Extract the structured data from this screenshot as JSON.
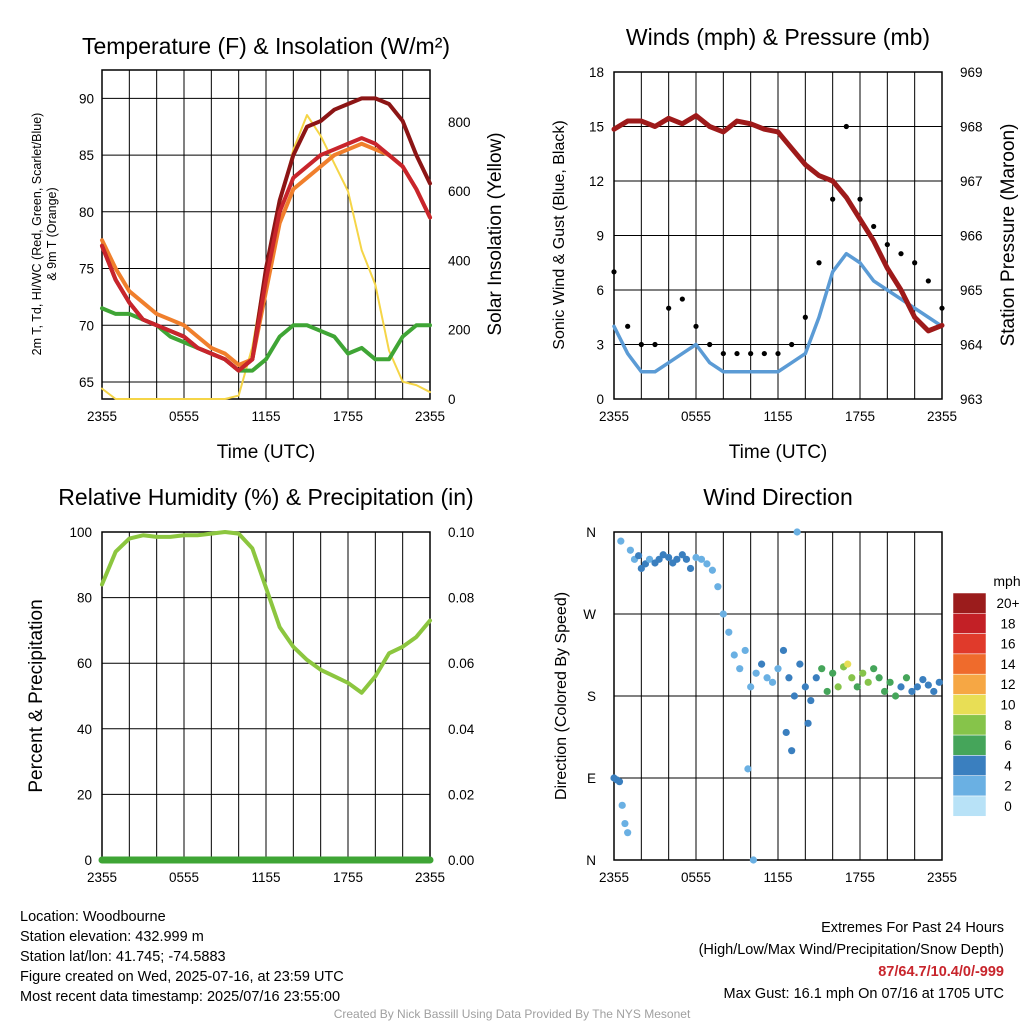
{
  "panels": {
    "temperature": {
      "title": "Temperature (F) & Insolation (W/m²)",
      "ylabel_left": [
        "2m T, Td, HI/WC (Red, Green, Scarlet/Blue)",
        "& 9m T (Orange)"
      ],
      "ylabel_right": "Solar Insolation (Yellow)",
      "xlabel": "Time (UTC)",
      "yticks_left": [
        "65",
        "70",
        "75",
        "80",
        "85",
        "90"
      ],
      "yticks_right": [
        "0",
        "200",
        "400",
        "600",
        "800"
      ]
    },
    "winds": {
      "title": "Winds (mph) & Pressure (mb)",
      "ylabel_left": "Sonic Wind & Gust (Blue, Black)",
      "ylabel_right": "Station Pressure (Maroon)",
      "xlabel": "Time (UTC)",
      "yticks_left": [
        "0",
        "3",
        "6",
        "9",
        "12",
        "15",
        "18"
      ],
      "yticks_right": [
        "963",
        "964",
        "965",
        "966",
        "967",
        "968",
        "969"
      ]
    },
    "humidity": {
      "title": "Relative Humidity (%) & Precipitation (in)",
      "ylabel_left": "Percent & Precipitation",
      "yticks_left": [
        "0",
        "20",
        "40",
        "60",
        "80",
        "100"
      ],
      "yticks_right": [
        "0.00",
        "0.02",
        "0.04",
        "0.06",
        "0.08",
        "0.10"
      ]
    },
    "direction": {
      "title": "Wind Direction",
      "ylabel_left": "Direction (Colored By Speed)",
      "yticks_left": [
        "N",
        "E",
        "S",
        "W",
        "N"
      ],
      "legend_unit": "mph",
      "legend_labels": [
        "20+",
        "18",
        "16",
        "14",
        "12",
        "10",
        "8",
        "6",
        "4",
        "2",
        "0"
      ]
    },
    "xticks": [
      "2355",
      "0555",
      "1155",
      "1755",
      "2355"
    ]
  },
  "colors": {
    "temperature": "#c8252c",
    "dewpoint": "#3fa535",
    "heat_index": "#8c1515",
    "temp_9m": "#f07f2c",
    "insolation": "#f5d547",
    "wind": "#5b9bd5",
    "gust": "#000000",
    "pressure": "#9e1a1a",
    "humidity": "#8cc63f",
    "precip": "#3fa535",
    "speed_scale": [
      "#9b1c1c",
      "#c32026",
      "#e03a2b",
      "#ef6b2c",
      "#f6a744",
      "#e8de55",
      "#86c44a",
      "#45a55a",
      "#3a7fbf",
      "#6ab0e3",
      "#b8e2f7"
    ]
  },
  "chart_data": [
    {
      "type": "line",
      "title": "Temperature (F) & Insolation (W/m²)",
      "xlabel": "Time (UTC)",
      "ylabel": "2m T, Td, HI/WC (Red, Green, Scarlet/Blue) & 9m T (Orange)",
      "ylabel_right": "Solar Insolation (Yellow)",
      "x_hours": [
        0,
        1,
        2,
        3,
        4,
        5,
        6,
        7,
        8,
        9,
        10,
        11,
        12,
        13,
        14,
        15,
        16,
        17,
        18,
        19,
        20,
        21,
        22,
        23,
        24
      ],
      "ylim": [
        63.5,
        92.5
      ],
      "ylim_right": [
        0,
        950
      ],
      "series": [
        {
          "name": "2m T",
          "values": [
            77,
            74,
            72,
            70.5,
            70,
            69.5,
            69,
            68,
            67.5,
            67,
            66,
            67,
            74,
            80,
            83,
            84,
            85,
            85.5,
            86,
            86.5,
            86,
            85,
            84,
            82,
            79.5
          ]
        },
        {
          "name": "Td",
          "values": [
            71.5,
            71,
            71,
            70.5,
            70,
            69,
            68.5,
            68,
            67.5,
            67,
            66,
            66,
            67,
            69,
            70,
            70,
            69.5,
            69,
            67.5,
            68,
            67,
            67,
            69,
            70,
            70
          ]
        },
        {
          "name": "HI/WC",
          "values": [
            77,
            74,
            72,
            70.5,
            70,
            69.5,
            69,
            68,
            67.5,
            67,
            66,
            67,
            75,
            81,
            85,
            87.5,
            88,
            89,
            89.5,
            90,
            90,
            89.5,
            88,
            85,
            82.5
          ]
        },
        {
          "name": "9m T",
          "values": [
            77.5,
            75,
            73,
            72,
            71,
            70.5,
            70,
            69,
            68,
            67.5,
            66.5,
            67,
            73,
            79,
            82,
            83,
            84,
            85,
            85.5,
            86,
            85.5,
            85,
            84,
            82,
            79.5
          ]
        },
        {
          "name": "Solar Insolation",
          "axis": "right",
          "values": [
            30,
            0,
            0,
            0,
            0,
            0,
            0,
            0,
            0,
            0,
            10,
            150,
            380,
            560,
            720,
            820,
            760,
            680,
            600,
            430,
            330,
            140,
            50,
            40,
            20
          ]
        }
      ]
    },
    {
      "type": "line",
      "title": "Winds (mph) & Pressure (mb)",
      "xlabel": "Time (UTC)",
      "ylabel": "Sonic Wind & Gust (Blue, Black)",
      "ylabel_right": "Station Pressure (Maroon)",
      "x_hours": [
        0,
        1,
        2,
        3,
        4,
        5,
        6,
        7,
        8,
        9,
        10,
        11,
        12,
        13,
        14,
        15,
        16,
        17,
        18,
        19,
        20,
        21,
        22,
        23,
        24
      ],
      "ylim": [
        0,
        18
      ],
      "ylim_right": [
        963,
        969
      ],
      "series": [
        {
          "name": "Sonic Wind",
          "values": [
            4,
            2.5,
            1.5,
            1.5,
            2,
            2.5,
            3,
            2,
            1.5,
            1.5,
            1.5,
            1.5,
            1.5,
            2,
            2.5,
            4.5,
            7,
            8,
            7.5,
            6.5,
            6,
            5.5,
            5,
            4.5,
            4
          ]
        },
        {
          "name": "Gust",
          "values": [
            7,
            4,
            3,
            3,
            5,
            5.5,
            4,
            3,
            2.5,
            2.5,
            2.5,
            2.5,
            2.5,
            3,
            4.5,
            7.5,
            11,
            15,
            11,
            9.5,
            8.5,
            8,
            7.5,
            6.5,
            5
          ]
        },
        {
          "name": "Station Pressure",
          "axis": "right",
          "values": [
            967.95,
            968.1,
            968.1,
            968.0,
            968.15,
            968.05,
            968.2,
            968.0,
            967.9,
            968.1,
            968.05,
            967.95,
            967.9,
            967.6,
            967.3,
            967.1,
            967.0,
            966.7,
            966.3,
            965.9,
            965.4,
            965.0,
            964.5,
            964.25,
            964.35
          ]
        }
      ]
    },
    {
      "type": "line",
      "title": "Relative Humidity (%) & Precipitation (in)",
      "ylabel": "Percent & Precipitation",
      "x_hours": [
        0,
        1,
        2,
        3,
        4,
        5,
        6,
        7,
        8,
        9,
        10,
        11,
        12,
        13,
        14,
        15,
        16,
        17,
        18,
        19,
        20,
        21,
        22,
        23,
        24
      ],
      "ylim": [
        0,
        100
      ],
      "ylim_right": [
        0,
        0.1
      ],
      "series": [
        {
          "name": "Relative Humidity",
          "values": [
            84,
            94,
            98,
            99,
            98.5,
            98.5,
            99,
            99,
            99.5,
            100,
            99.5,
            95,
            83,
            71,
            65,
            61,
            58,
            56,
            54,
            51,
            56,
            63,
            65,
            68,
            73
          ]
        },
        {
          "name": "Precipitation",
          "axis": "right",
          "values": [
            0,
            0,
            0,
            0,
            0,
            0,
            0,
            0,
            0,
            0,
            0,
            0,
            0,
            0,
            0,
            0,
            0,
            0,
            0,
            0,
            0,
            0,
            0,
            0,
            0
          ]
        }
      ]
    },
    {
      "type": "scatter",
      "title": "Wind Direction",
      "ylabel": "Direction (Colored By Speed)",
      "yticks": [
        "N",
        "E",
        "S",
        "W",
        "N"
      ],
      "ylim": [
        0,
        360
      ],
      "color_scale_mph": [
        0,
        2,
        4,
        6,
        8,
        10,
        12,
        14,
        16,
        18,
        20
      ],
      "points": [
        {
          "h": 0.0,
          "dir": 90,
          "mph": 3
        },
        {
          "h": 0.2,
          "dir": 88,
          "mph": 4
        },
        {
          "h": 0.4,
          "dir": 86,
          "mph": 4
        },
        {
          "h": 0.6,
          "dir": 60,
          "mph": 2
        },
        {
          "h": 0.8,
          "dir": 40,
          "mph": 1
        },
        {
          "h": 1.0,
          "dir": 30,
          "mph": 1
        },
        {
          "h": 0.5,
          "dir": 350,
          "mph": 1
        },
        {
          "h": 1.2,
          "dir": 340,
          "mph": 2
        },
        {
          "h": 1.5,
          "dir": 330,
          "mph": 2
        },
        {
          "h": 1.8,
          "dir": 334,
          "mph": 3
        },
        {
          "h": 2.0,
          "dir": 320,
          "mph": 3
        },
        {
          "h": 2.3,
          "dir": 325,
          "mph": 3
        },
        {
          "h": 2.6,
          "dir": 330,
          "mph": 2
        },
        {
          "h": 3.0,
          "dir": 326,
          "mph": 4
        },
        {
          "h": 3.3,
          "dir": 330,
          "mph": 4
        },
        {
          "h": 3.6,
          "dir": 335,
          "mph": 4
        },
        {
          "h": 4.0,
          "dir": 332,
          "mph": 4
        },
        {
          "h": 4.3,
          "dir": 326,
          "mph": 3
        },
        {
          "h": 4.6,
          "dir": 330,
          "mph": 3
        },
        {
          "h": 5.0,
          "dir": 335,
          "mph": 4
        },
        {
          "h": 5.3,
          "dir": 330,
          "mph": 4
        },
        {
          "h": 5.6,
          "dir": 320,
          "mph": 3
        },
        {
          "h": 6.0,
          "dir": 332,
          "mph": 2
        },
        {
          "h": 6.4,
          "dir": 330,
          "mph": 2
        },
        {
          "h": 6.8,
          "dir": 325,
          "mph": 2
        },
        {
          "h": 7.2,
          "dir": 318,
          "mph": 2
        },
        {
          "h": 7.6,
          "dir": 300,
          "mph": 1
        },
        {
          "h": 8.0,
          "dir": 270,
          "mph": 1
        },
        {
          "h": 8.4,
          "dir": 250,
          "mph": 1
        },
        {
          "h": 8.8,
          "dir": 225,
          "mph": 2
        },
        {
          "h": 9.2,
          "dir": 210,
          "mph": 1
        },
        {
          "h": 9.6,
          "dir": 230,
          "mph": 1
        },
        {
          "h": 10.0,
          "dir": 190,
          "mph": 2
        },
        {
          "h": 10.4,
          "dir": 205,
          "mph": 2
        },
        {
          "h": 10.8,
          "dir": 215,
          "mph": 3
        },
        {
          "h": 11.2,
          "dir": 200,
          "mph": 1
        },
        {
          "h": 11.6,
          "dir": 195,
          "mph": 2
        },
        {
          "h": 12.0,
          "dir": 210,
          "mph": 2
        },
        {
          "h": 12.4,
          "dir": 230,
          "mph": 3
        },
        {
          "h": 12.8,
          "dir": 200,
          "mph": 3
        },
        {
          "h": 13.2,
          "dir": 180,
          "mph": 4
        },
        {
          "h": 13.6,
          "dir": 215,
          "mph": 4
        },
        {
          "h": 14.0,
          "dir": 190,
          "mph": 3
        },
        {
          "h": 14.4,
          "dir": 175,
          "mph": 4
        },
        {
          "h": 14.8,
          "dir": 200,
          "mph": 4
        },
        {
          "h": 15.2,
          "dir": 210,
          "mph": 5
        },
        {
          "h": 15.6,
          "dir": 185,
          "mph": 5
        },
        {
          "h": 16.0,
          "dir": 205,
          "mph": 6
        },
        {
          "h": 16.4,
          "dir": 190,
          "mph": 7
        },
        {
          "h": 16.8,
          "dir": 212,
          "mph": 8
        },
        {
          "h": 17.1,
          "dir": 215,
          "mph": 10
        },
        {
          "h": 17.4,
          "dir": 200,
          "mph": 7
        },
        {
          "h": 17.8,
          "dir": 190,
          "mph": 6
        },
        {
          "h": 18.2,
          "dir": 205,
          "mph": 7
        },
        {
          "h": 18.6,
          "dir": 195,
          "mph": 8
        },
        {
          "h": 19.0,
          "dir": 210,
          "mph": 6
        },
        {
          "h": 19.4,
          "dir": 200,
          "mph": 6
        },
        {
          "h": 19.8,
          "dir": 185,
          "mph": 5
        },
        {
          "h": 20.2,
          "dir": 195,
          "mph": 6
        },
        {
          "h": 20.6,
          "dir": 180,
          "mph": 5
        },
        {
          "h": 21.0,
          "dir": 190,
          "mph": 4
        },
        {
          "h": 21.4,
          "dir": 200,
          "mph": 5
        },
        {
          "h": 21.8,
          "dir": 185,
          "mph": 4
        },
        {
          "h": 22.2,
          "dir": 190,
          "mph": 4
        },
        {
          "h": 22.6,
          "dir": 198,
          "mph": 4
        },
        {
          "h": 23.0,
          "dir": 192,
          "mph": 3
        },
        {
          "h": 23.4,
          "dir": 185,
          "mph": 3
        },
        {
          "h": 23.8,
          "dir": 195,
          "mph": 3
        },
        {
          "h": 13.0,
          "dir": 120,
          "mph": 4
        },
        {
          "h": 12.6,
          "dir": 140,
          "mph": 3
        },
        {
          "h": 14.2,
          "dir": 150,
          "mph": 4
        },
        {
          "h": 9.8,
          "dir": 100,
          "mph": 1
        },
        {
          "h": 10.2,
          "dir": 0,
          "mph": 1
        },
        {
          "h": 13.4,
          "dir": 360,
          "mph": 1
        }
      ]
    }
  ],
  "station": {
    "location": "Location: Woodbourne",
    "elevation": "Station elevation: 432.999 m",
    "latlon": "Station lat/lon: 41.745; -74.5883",
    "created": "Figure created on Wed, 2025-07-16, at 23:59 UTC",
    "latest": "Most recent data timestamp: 2025/07/16 23:55:00"
  },
  "extremes": {
    "title": "Extremes For Past 24 Hours",
    "subtitle": "(High/Low/Max Wind/Precipitation/Snow Depth)",
    "values": "87/64.7/10.4/0/-999",
    "gust": "Max Gust: 16.1 mph On 07/16 at 1705 UTC"
  },
  "footer": "Created By Nick Bassill Using Data Provided By The NYS Mesonet"
}
